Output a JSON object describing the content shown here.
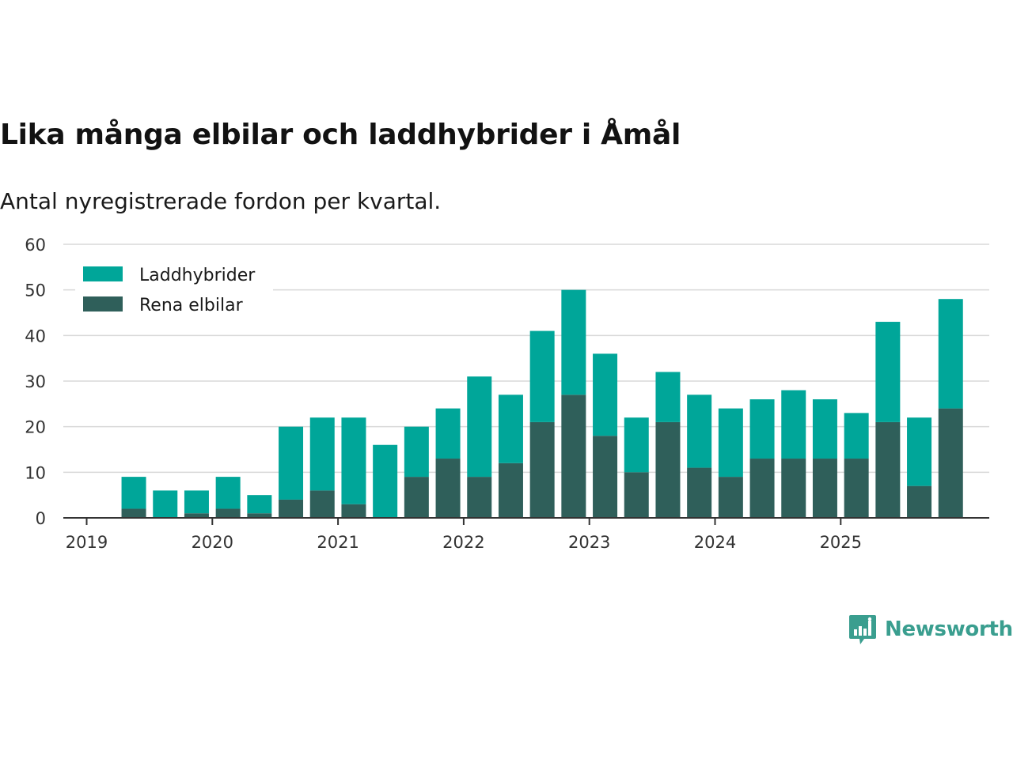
{
  "chart_data": {
    "type": "bar",
    "stacked": true,
    "title": "Lika många elbilar och laddhybrider i Åmål",
    "subtitle": "Antal nyregistrerade fordon per kvartal.",
    "xlabel": "",
    "ylabel": "",
    "ylim": [
      0,
      60
    ],
    "yticks": [
      0,
      10,
      20,
      30,
      40,
      50,
      60
    ],
    "x_tick_labels": [
      "2019",
      "2020",
      "2021",
      "2022",
      "2023",
      "2024",
      "2025"
    ],
    "categories": [
      "2019 Q2",
      "2019 Q3",
      "2019 Q4",
      "2020 Q1",
      "2020 Q2",
      "2020 Q3",
      "2020 Q4",
      "2021 Q1",
      "2021 Q2",
      "2021 Q3",
      "2021 Q4",
      "2022 Q1",
      "2022 Q2",
      "2022 Q3",
      "2022 Q4",
      "2023 Q1",
      "2023 Q2",
      "2023 Q3",
      "2023 Q4",
      "2024 Q1",
      "2024 Q2",
      "2024 Q3",
      "2024 Q4",
      "2025 Q1",
      "2025 Q2",
      "2025 Q3",
      "2025 Q4"
    ],
    "series": [
      {
        "name": "Rena elbilar",
        "color": "#2f5f5a",
        "values": [
          2,
          0,
          1,
          2,
          1,
          4,
          6,
          3,
          0,
          9,
          13,
          9,
          12,
          21,
          27,
          18,
          10,
          21,
          11,
          9,
          13,
          13,
          13,
          13,
          21,
          7,
          24
        ]
      },
      {
        "name": "Laddhybrider",
        "color": "#00a699",
        "values": [
          7,
          6,
          5,
          7,
          4,
          16,
          16,
          19,
          16,
          11,
          11,
          22,
          15,
          20,
          23,
          18,
          12,
          11,
          16,
          15,
          13,
          15,
          13,
          10,
          22,
          15,
          24
        ]
      }
    ],
    "legend": {
      "position": "top-left",
      "entries": [
        "Laddhybrider",
        "Rena elbilar"
      ]
    },
    "grid": true
  },
  "brand": {
    "name": "Newsworthy",
    "color": "#3a9e8f"
  }
}
